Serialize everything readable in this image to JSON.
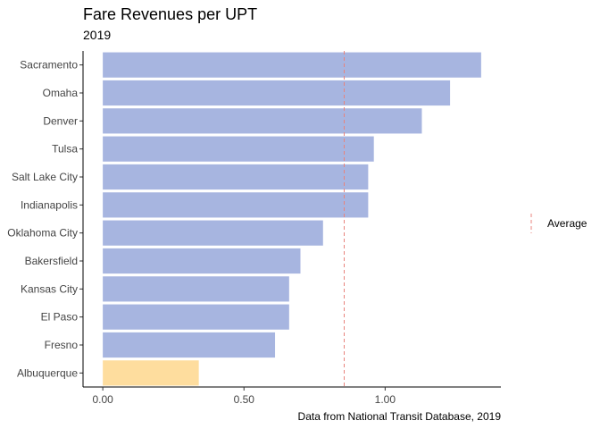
{
  "chart_data": {
    "type": "bar",
    "orientation": "horizontal",
    "title": "Fare Revenues per UPT",
    "subtitle": "2019",
    "caption": "Data from National Transit Database, 2019",
    "xlabel": "",
    "ylabel": "",
    "xlim": [
      -0.07,
      1.41
    ],
    "xticks": [
      0.0,
      0.5,
      1.0
    ],
    "xtick_labels": [
      "0.00",
      "0.50",
      "1.00"
    ],
    "categories": [
      "Sacramento",
      "Omaha",
      "Denver",
      "Tulsa",
      "Salt Lake City",
      "Indianapolis",
      "Oklahoma City",
      "Bakersfield",
      "Kansas City",
      "El Paso",
      "Fresno",
      "Albuquerque"
    ],
    "values": [
      1.34,
      1.23,
      1.13,
      0.96,
      0.94,
      0.94,
      0.78,
      0.7,
      0.66,
      0.66,
      0.61,
      0.34
    ],
    "highlight_category": "Albuquerque",
    "reference_line": {
      "value": 0.855,
      "label": "Average",
      "style": "dashed"
    },
    "grid": false,
    "legend": {
      "position": "right",
      "entries": [
        "Average"
      ]
    },
    "colors": {
      "bar": "#a7b5e0",
      "highlight": "#fedd9e",
      "reference_line": "#e8837c",
      "axis": "#000000"
    }
  }
}
